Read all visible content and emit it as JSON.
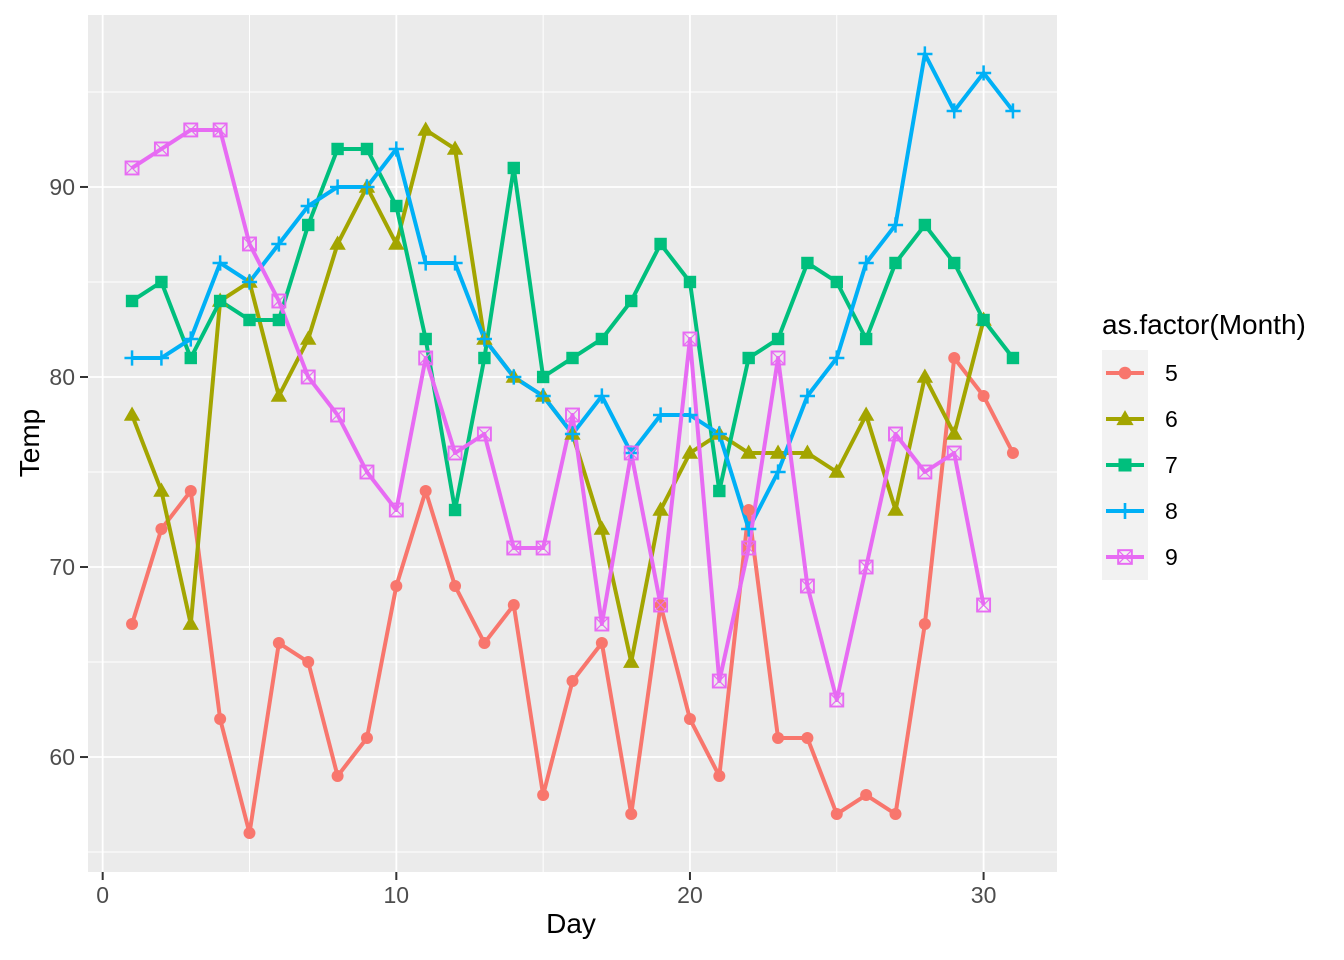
{
  "chart_data": {
    "type": "line",
    "title": "",
    "xlabel": "Day",
    "ylabel": "Temp",
    "legend_title": "as.factor(Month)",
    "legend_position": "right",
    "panel_background": "#EBEBEB",
    "grid_color": "#FFFFFF",
    "legend_key_background": "#F2F2F2",
    "axis_text_color": "#4D4D4D",
    "tick_color": "#333333",
    "xlim": [
      -0.5,
      32.5
    ],
    "ylim": [
      53.95,
      99.05
    ],
    "x_major_ticks": [
      0,
      10,
      20,
      30
    ],
    "x_minor_ticks": [
      5,
      15,
      25
    ],
    "y_major_ticks": [
      60,
      70,
      80,
      90
    ],
    "y_minor_ticks": [
      55,
      65,
      75,
      85,
      95
    ],
    "grid": true,
    "series": [
      {
        "name": "5",
        "color": "#F8766D",
        "shape": "circle",
        "x": [
          1,
          2,
          3,
          4,
          5,
          6,
          7,
          8,
          9,
          10,
          11,
          12,
          13,
          14,
          15,
          16,
          17,
          18,
          19,
          20,
          21,
          22,
          23,
          24,
          25,
          26,
          27,
          28,
          29,
          30,
          31
        ],
        "values": [
          67,
          72,
          74,
          62,
          56,
          66,
          65,
          59,
          61,
          69,
          74,
          69,
          66,
          68,
          58,
          64,
          66,
          57,
          68,
          62,
          59,
          73,
          61,
          61,
          57,
          58,
          57,
          67,
          81,
          79,
          76
        ]
      },
      {
        "name": "6",
        "color": "#A3A500",
        "shape": "triangle-up",
        "x": [
          1,
          2,
          3,
          4,
          5,
          6,
          7,
          8,
          9,
          10,
          11,
          12,
          13,
          14,
          15,
          16,
          17,
          18,
          19,
          20,
          21,
          22,
          23,
          24,
          25,
          26,
          27,
          28,
          29,
          30
        ],
        "values": [
          78,
          74,
          67,
          84,
          85,
          79,
          82,
          87,
          90,
          87,
          93,
          92,
          82,
          80,
          79,
          77,
          72,
          65,
          73,
          76,
          77,
          76,
          76,
          76,
          75,
          78,
          73,
          80,
          77,
          83
        ]
      },
      {
        "name": "7",
        "color": "#00BF7D",
        "shape": "square",
        "x": [
          1,
          2,
          3,
          4,
          5,
          6,
          7,
          8,
          9,
          10,
          11,
          12,
          13,
          14,
          15,
          16,
          17,
          18,
          19,
          20,
          21,
          22,
          23,
          24,
          25,
          26,
          27,
          28,
          29,
          30,
          31
        ],
        "values": [
          84,
          85,
          81,
          84,
          83,
          83,
          88,
          92,
          92,
          89,
          82,
          73,
          81,
          91,
          80,
          81,
          82,
          84,
          87,
          85,
          74,
          81,
          82,
          86,
          85,
          82,
          86,
          88,
          86,
          83,
          81
        ]
      },
      {
        "name": "8",
        "color": "#00B0F6",
        "shape": "plus",
        "x": [
          1,
          2,
          3,
          4,
          5,
          6,
          7,
          8,
          9,
          10,
          11,
          12,
          13,
          14,
          15,
          16,
          17,
          18,
          19,
          20,
          21,
          22,
          23,
          24,
          25,
          26,
          27,
          28,
          29,
          30,
          31
        ],
        "values": [
          81,
          81,
          82,
          86,
          85,
          87,
          89,
          90,
          90,
          92,
          86,
          86,
          82,
          80,
          79,
          77,
          79,
          76,
          78,
          78,
          77,
          72,
          75,
          79,
          81,
          86,
          88,
          97,
          94,
          96,
          94
        ]
      },
      {
        "name": "9",
        "color": "#E76BF3",
        "shape": "square-x",
        "x": [
          1,
          2,
          3,
          4,
          5,
          6,
          7,
          8,
          9,
          10,
          11,
          12,
          13,
          14,
          15,
          16,
          17,
          18,
          19,
          20,
          21,
          22,
          23,
          24,
          25,
          26,
          27,
          28,
          29,
          30
        ],
        "values": [
          91,
          92,
          93,
          93,
          87,
          84,
          80,
          78,
          75,
          73,
          81,
          76,
          77,
          71,
          71,
          78,
          67,
          76,
          68,
          82,
          64,
          71,
          81,
          69,
          63,
          70,
          77,
          75,
          76,
          68
        ]
      }
    ]
  }
}
